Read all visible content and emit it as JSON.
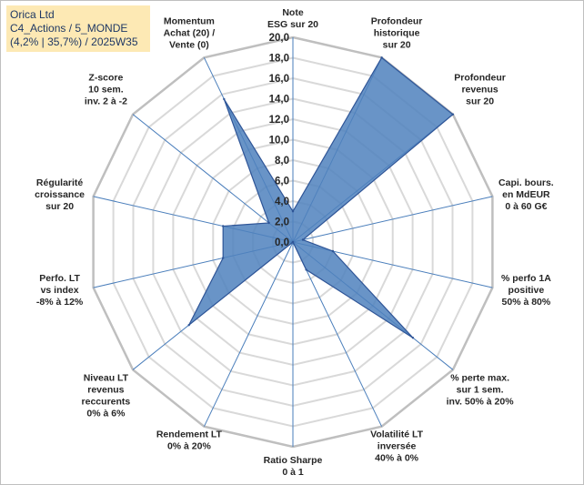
{
  "header": {
    "line1": "Orica Ltd",
    "line2": "C4_Actions / 5_MONDE",
    "line3": "(4,2% | 35,7%) / 2025W35"
  },
  "colors": {
    "grid": "#d9d9d9",
    "spoke": "#4a7ebb",
    "fill": "#4f81bd",
    "stroke": "#2f5597"
  },
  "chart_data": {
    "type": "radar",
    "rmin": 0,
    "rmax": 20,
    "tick_step": 2,
    "tick_labels": [
      "0,0",
      "2,0",
      "4,0",
      "6,0",
      "8,0",
      "10,0",
      "12,0",
      "14,0",
      "16,0",
      "18,0",
      "20,0"
    ],
    "grid": true,
    "legend": "none",
    "axes": [
      {
        "label": [
          "Note",
          "ESG sur 20"
        ],
        "value": 3.0
      },
      {
        "label": [
          "Profondeur",
          "historique",
          "sur 20"
        ],
        "value": 20.0
      },
      {
        "label": [
          "Profondeur",
          "revenus",
          "sur 20"
        ],
        "value": 20.0
      },
      {
        "label": [
          "Capi. bours.",
          "en MdEUR",
          "0 à 60 G€"
        ],
        "value": 1.0
      },
      {
        "label": [
          "% perfo 1A",
          "positive",
          "50% à 80%"
        ],
        "value": 4.0
      },
      {
        "label": [
          "% perte max.",
          "sur 1 sem.",
          "inv. 50% à 20%"
        ],
        "value": 15.0
      },
      {
        "label": [
          "Volatilité LT",
          "inversée",
          "40% à 0%"
        ],
        "value": 3.0
      },
      {
        "label": [
          "Ratio Sharpe",
          "0 à 1"
        ],
        "value": 0.0
      },
      {
        "label": [
          "Rendement LT",
          "0% à 20%"
        ],
        "value": 0.0
      },
      {
        "label": [
          "Niveau LT",
          "revenus",
          "reccurents",
          "0% à 6%"
        ],
        "value": 13.0
      },
      {
        "label": [
          "Perfo. LT",
          "vs index",
          "-8% à 12%"
        ],
        "value": 7.0
      },
      {
        "label": [
          "Régularité",
          "croissance",
          "sur 20"
        ],
        "value": 7.0
      },
      {
        "label": [
          "Z-score",
          "10 sem.",
          "inv. 2 à -2"
        ],
        "value": 3.0
      },
      {
        "label": [
          "Momentum",
          "Achat (20) /",
          "Vente (0)"
        ],
        "value": 15.5
      }
    ]
  }
}
